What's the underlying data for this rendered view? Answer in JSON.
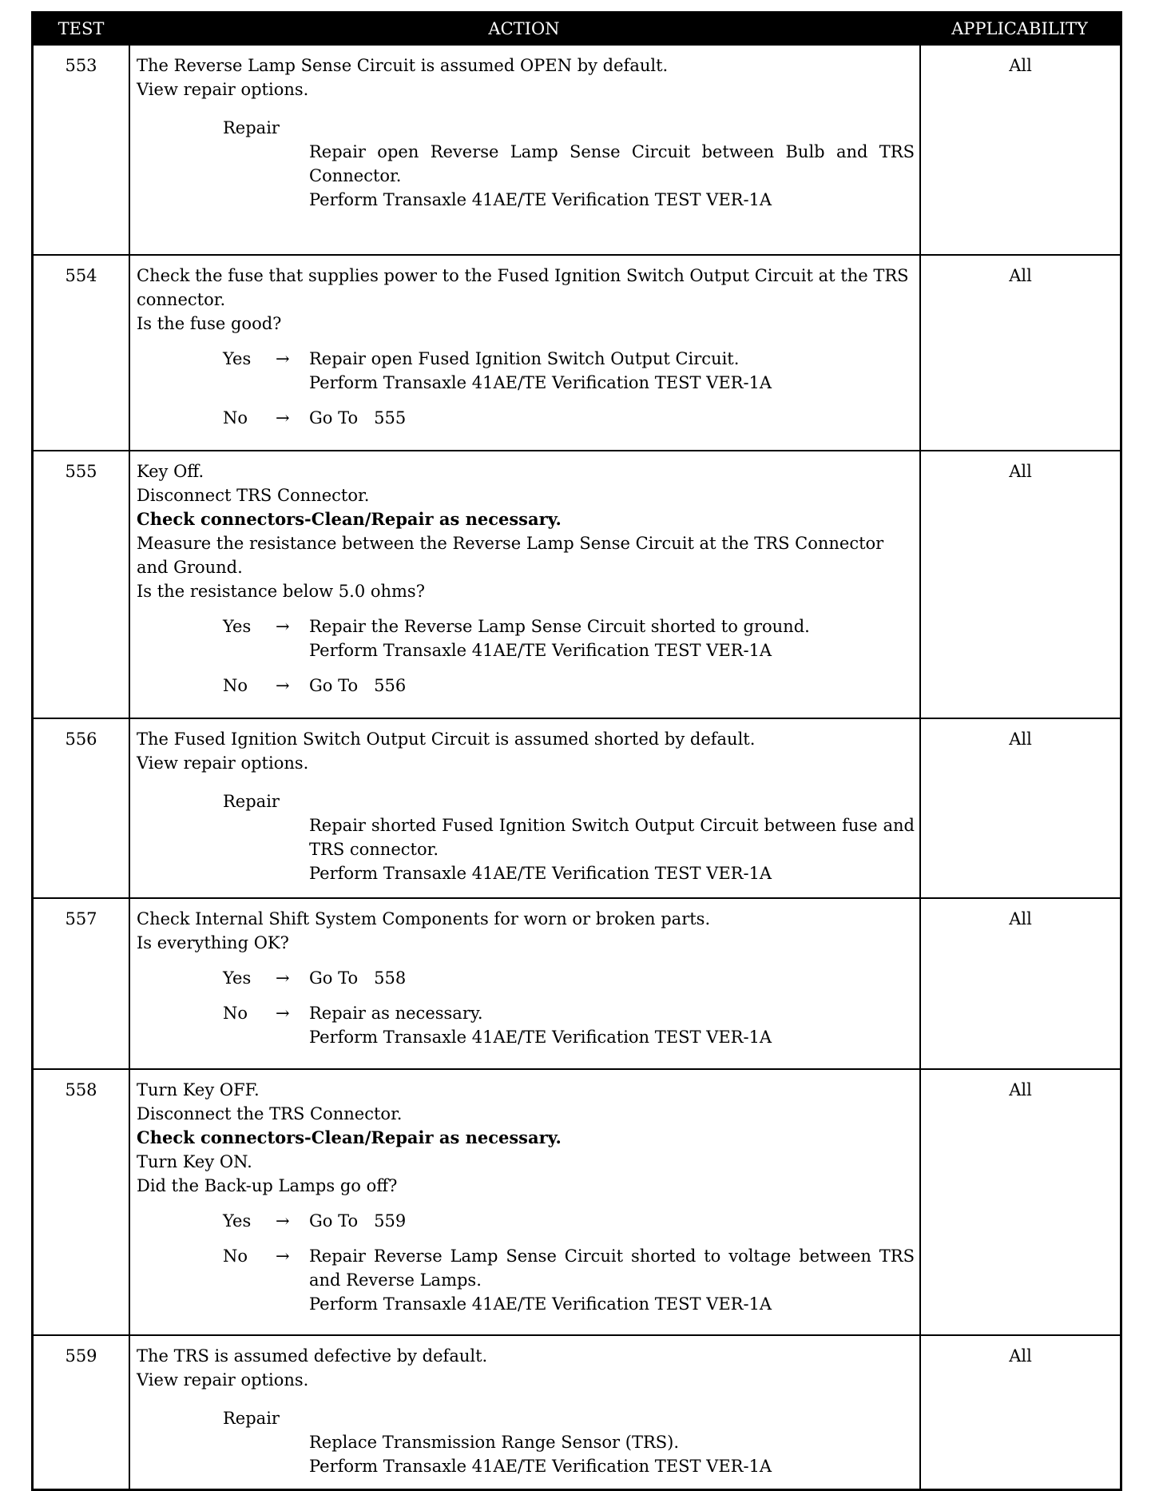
{
  "headers": {
    "test": "TEST",
    "action": "ACTION",
    "applicability": "APPLICABILITY"
  },
  "rows": [
    {
      "test": "553",
      "app": "All",
      "lines": [
        "The Reverse Lamp Sense Circuit is assumed OPEN by default.",
        "View repair options."
      ],
      "repair_label": "Repair",
      "repair": [
        "Repair open Reverse Lamp Sense Circuit between Bulb and TRS Connector.",
        "Perform Transaxle 41AE/TE Verification TEST VER-1A"
      ]
    },
    {
      "test": "554",
      "app": "All",
      "lines": [
        "Check the fuse that supplies power to the Fused Ignition Switch Output Circuit at the TRS connector.",
        "Is the fuse good?"
      ],
      "options": [
        {
          "key": "Yes",
          "arrow": "→",
          "text": [
            "Repair open Fused Ignition Switch Output Circuit.",
            "Perform Transaxle 41AE/TE Verification TEST VER-1A"
          ]
        },
        {
          "key": "No",
          "arrow": "→",
          "text": [
            "Go To   555"
          ]
        }
      ]
    },
    {
      "test": "555",
      "app": "All",
      "lines": [
        "Key Off.",
        "Disconnect TRS Connector.",
        "Check connectors-Clean/Repair as necessary.",
        "Measure the resistance between the Reverse Lamp Sense Circuit at the TRS Connector and Ground.",
        "Is the resistance below 5.0 ohms?"
      ],
      "bold_line": 2,
      "options": [
        {
          "key": "Yes",
          "arrow": "→",
          "text": [
            "Repair the Reverse Lamp Sense Circuit shorted to ground.",
            "Perform Transaxle 41AE/TE Verification TEST VER-1A"
          ]
        },
        {
          "key": "No",
          "arrow": "→",
          "text": [
            "Go To   556"
          ]
        }
      ]
    },
    {
      "test": "556",
      "app": "All",
      "lines": [
        "The Fused Ignition Switch Output Circuit is assumed shorted by default.",
        "View repair options."
      ],
      "repair_label": "Repair",
      "repair": [
        "Repair shorted Fused Ignition Switch Output Circuit between fuse and TRS connector.",
        "Perform Transaxle 41AE/TE Verification TEST VER-1A"
      ]
    },
    {
      "test": "557",
      "app": "All",
      "lines": [
        "Check Internal Shift System Components for worn or broken parts.",
        "Is everything OK?"
      ],
      "options": [
        {
          "key": "Yes",
          "arrow": "→",
          "text": [
            "Go To   558"
          ]
        },
        {
          "key": "No",
          "arrow": "→",
          "text": [
            "Repair as necessary.",
            "Perform Transaxle 41AE/TE Verification TEST VER-1A"
          ]
        }
      ]
    },
    {
      "test": "558",
      "app": "All",
      "lines": [
        "Turn Key OFF.",
        "Disconnect the TRS Connector.",
        "Check connectors-Clean/Repair as necessary.",
        "Turn Key ON.",
        "Did the Back-up Lamps go off?"
      ],
      "bold_line": 2,
      "options": [
        {
          "key": "Yes",
          "arrow": "→",
          "text": [
            "Go To   559"
          ]
        },
        {
          "key": "No",
          "arrow": "→",
          "text": [
            "Repair Reverse Lamp Sense Circuit shorted to voltage between TRS and Reverse Lamps.",
            "Perform Transaxle 41AE/TE Verification TEST VER-1A"
          ]
        }
      ]
    },
    {
      "test": "559",
      "app": "All",
      "lines": [
        "The TRS is assumed defective by default.",
        "View repair options."
      ],
      "repair_label": "Repair",
      "repair": [
        "Replace Transmission Range Sensor (TRS).",
        "Perform Transaxle 41AE/TE Verification TEST VER-1A"
      ]
    }
  ]
}
